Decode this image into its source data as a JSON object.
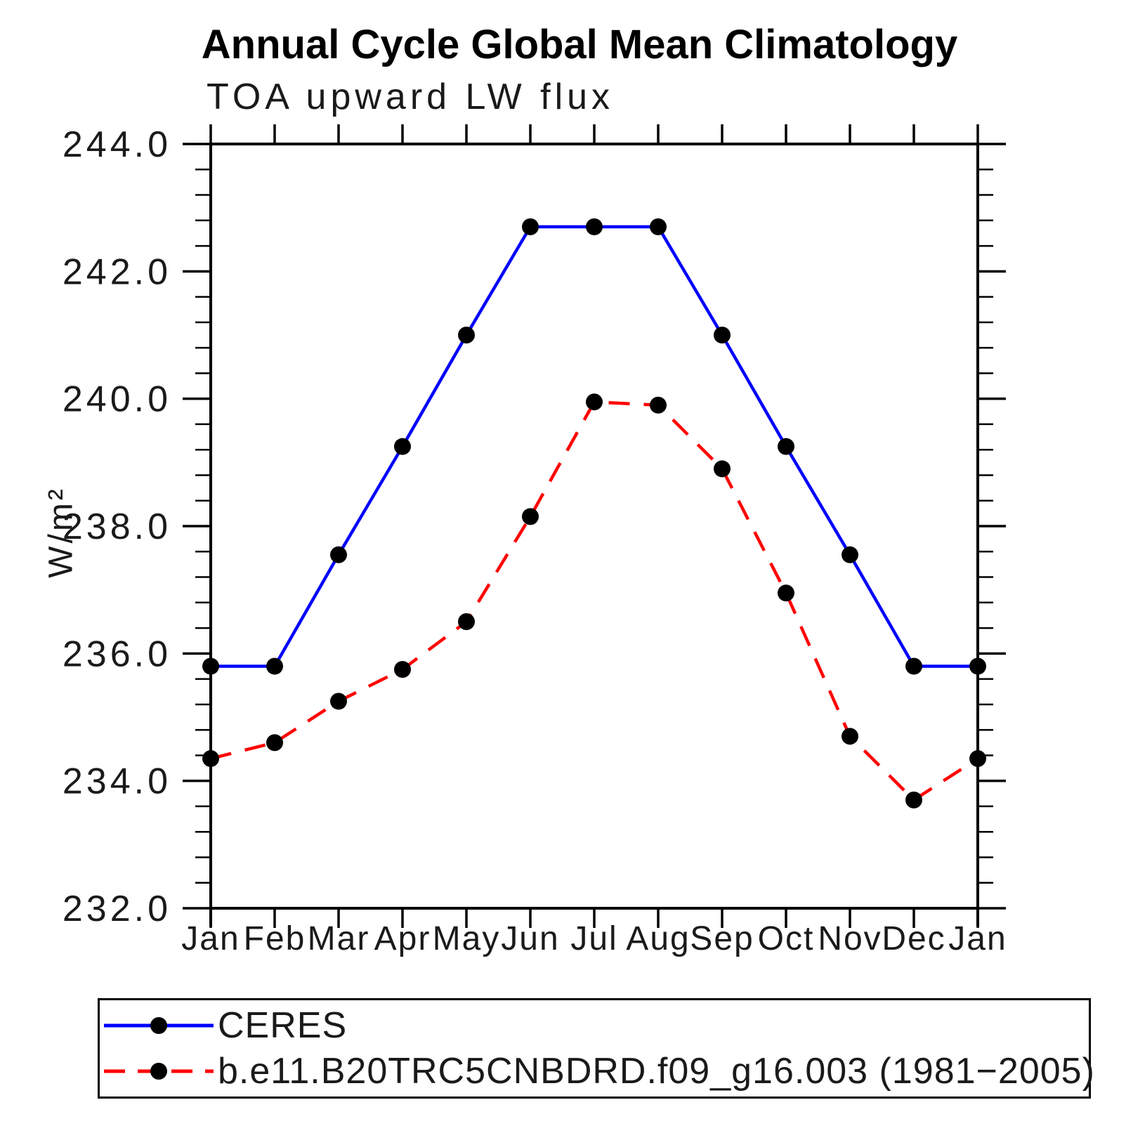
{
  "chart_data": {
    "type": "line",
    "title": "Annual Cycle Global Mean Climatology",
    "subtitle": "TOA upward LW flux",
    "ylabel": "W/m²",
    "xlabel": "",
    "categories": [
      "Jan",
      "Feb",
      "Mar",
      "Apr",
      "May",
      "Jun",
      "Jul",
      "Aug",
      "Sep",
      "Oct",
      "Nov",
      "Dec",
      "Jan"
    ],
    "ylim": [
      232.0,
      244.0
    ],
    "y_major_step": 2.0,
    "y_minor_step": 0.4,
    "y_tick_labels": [
      "244.0",
      "242.0",
      "240.0",
      "238.0",
      "236.0",
      "234.0",
      "232.0"
    ],
    "grid": false,
    "legend_position": "bottom-left-box",
    "axis_color": "#000000",
    "marker": "filled-circle",
    "marker_color": "#000000",
    "series": [
      {
        "name": "CERES",
        "color": "#0000ff",
        "line_style": "solid",
        "values": [
          235.8,
          235.8,
          237.55,
          239.25,
          241.0,
          242.7,
          242.7,
          242.7,
          241.0,
          239.25,
          237.55,
          235.8,
          235.8
        ]
      },
      {
        "name": "b.e11.B20TRC5CNBDRD.f09_g16.003 (1981−2005)",
        "color": "#ff0000",
        "line_style": "dashed",
        "values": [
          234.35,
          234.6,
          235.25,
          235.75,
          236.5,
          238.15,
          239.95,
          239.9,
          238.9,
          236.95,
          234.7,
          233.7,
          234.35
        ]
      }
    ]
  }
}
